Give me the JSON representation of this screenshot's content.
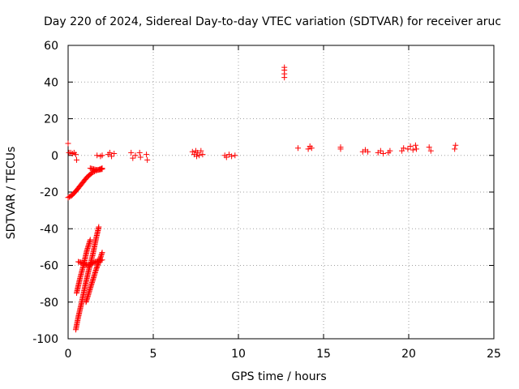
{
  "chart_data": {
    "type": "scatter",
    "title": "Day 220 of 2024, Sidereal Day-to-day VTEC variation (SDTVAR) for receiver aruc",
    "xlabel": "GPS time / hours",
    "ylabel": "SDTVAR / TECUs",
    "xlim": [
      0,
      25
    ],
    "ylim": [
      -100,
      60
    ],
    "xticks": [
      0,
      5,
      10,
      15,
      20,
      25
    ],
    "yticks": [
      -100,
      -80,
      -60,
      -40,
      -20,
      0,
      20,
      40,
      60
    ],
    "grid": true,
    "marker": "plus",
    "color": "#ff0000",
    "clusters": [
      {
        "x": 0.0,
        "y": 6.5
      },
      {
        "x": 0.05,
        "y": 1.5
      },
      {
        "x": 0.15,
        "y": 1.5
      },
      {
        "x": 0.25,
        "y": 1.0
      },
      {
        "x": 0.35,
        "y": 1.5
      },
      {
        "x": 0.45,
        "y": 0.5
      },
      {
        "x": 0.5,
        "y": -2.5
      },
      {
        "x": 1.7,
        "y": 0.0
      },
      {
        "x": 1.9,
        "y": -0.5
      },
      {
        "x": 2.0,
        "y": 0.0
      },
      {
        "x": 2.35,
        "y": 0.5
      },
      {
        "x": 2.45,
        "y": 1.5
      },
      {
        "x": 2.55,
        "y": -0.5
      },
      {
        "x": 2.7,
        "y": 1.0
      },
      {
        "x": 3.7,
        "y": 1.5
      },
      {
        "x": 3.8,
        "y": -1.5
      },
      {
        "x": 3.95,
        "y": 0.0
      },
      {
        "x": 4.2,
        "y": 1.5
      },
      {
        "x": 4.25,
        "y": -1.0
      },
      {
        "x": 4.6,
        "y": 0.5
      },
      {
        "x": 4.65,
        "y": -2.5
      },
      {
        "x": 7.3,
        "y": 2.0
      },
      {
        "x": 7.4,
        "y": 0.5
      },
      {
        "x": 7.5,
        "y": 2.5
      },
      {
        "x": 7.6,
        "y": 1.5
      },
      {
        "x": 7.7,
        "y": 0.0
      },
      {
        "x": 7.8,
        "y": 2.5
      },
      {
        "x": 7.9,
        "y": 0.5
      },
      {
        "x": 7.55,
        "y": -0.5
      },
      {
        "x": 9.2,
        "y": 0.0
      },
      {
        "x": 9.3,
        "y": -1.0
      },
      {
        "x": 9.45,
        "y": 0.5
      },
      {
        "x": 9.6,
        "y": -0.5
      },
      {
        "x": 9.8,
        "y": 0.0
      },
      {
        "x": 12.7,
        "y": 42.5
      },
      {
        "x": 12.7,
        "y": 44.5
      },
      {
        "x": 12.7,
        "y": 46.5
      },
      {
        "x": 12.7,
        "y": 48.0
      },
      {
        "x": 13.5,
        "y": 4.0
      },
      {
        "x": 14.1,
        "y": 3.5
      },
      {
        "x": 14.2,
        "y": 5.0
      },
      {
        "x": 14.3,
        "y": 4.0
      },
      {
        "x": 16.0,
        "y": 4.5
      },
      {
        "x": 16.0,
        "y": 3.5
      },
      {
        "x": 17.3,
        "y": 2.0
      },
      {
        "x": 17.45,
        "y": 3.0
      },
      {
        "x": 17.6,
        "y": 2.0
      },
      {
        "x": 18.2,
        "y": 1.5
      },
      {
        "x": 18.35,
        "y": 2.5
      },
      {
        "x": 18.5,
        "y": 1.0
      },
      {
        "x": 18.8,
        "y": 1.5
      },
      {
        "x": 18.9,
        "y": 2.5
      },
      {
        "x": 19.6,
        "y": 2.5
      },
      {
        "x": 19.7,
        "y": 4.0
      },
      {
        "x": 19.95,
        "y": 3.5
      },
      {
        "x": 20.1,
        "y": 5.0
      },
      {
        "x": 20.25,
        "y": 3.0
      },
      {
        "x": 20.4,
        "y": 5.5
      },
      {
        "x": 20.45,
        "y": 3.5
      },
      {
        "x": 21.2,
        "y": 4.5
      },
      {
        "x": 21.3,
        "y": 2.5
      },
      {
        "x": 22.7,
        "y": 3.5
      },
      {
        "x": 22.75,
        "y": 5.5
      }
    ],
    "tracks": [
      {
        "x": [
          0.0,
          0.2,
          0.5,
          0.8,
          1.1,
          1.4,
          1.7,
          2.0
        ],
        "y": [
          -23.0,
          -22.0,
          -19.0,
          -15.5,
          -12.0,
          -9.5,
          -8.0,
          -7.5
        ]
      },
      {
        "x": [
          1.3,
          1.5,
          1.7,
          1.9,
          2.0
        ],
        "y": [
          -7.0,
          -7.5,
          -8.0,
          -7.5,
          -7.0
        ]
      },
      {
        "x": [
          0.45,
          0.6,
          0.8,
          1.0,
          1.2,
          1.45,
          1.65,
          1.8
        ],
        "y": [
          -95.0,
          -88.0,
          -80.0,
          -71.0,
          -63.0,
          -54.0,
          -45.0,
          -39.0
        ]
      },
      {
        "x": [
          0.5,
          0.7,
          0.9,
          1.1,
          1.3
        ],
        "y": [
          -75.0,
          -67.0,
          -60.0,
          -52.0,
          -46.0
        ]
      },
      {
        "x": [
          1.05,
          1.25,
          1.45,
          1.65,
          1.85,
          2.0
        ],
        "y": [
          -80.0,
          -74.0,
          -68.0,
          -62.0,
          -57.0,
          -53.0
        ]
      },
      {
        "x": [
          0.6,
          0.8,
          1.0,
          1.2,
          1.4,
          1.6,
          1.8,
          2.0
        ],
        "y": [
          -58.0,
          -58.5,
          -59.5,
          -60.0,
          -59.0,
          -58.0,
          -57.5,
          -57.0
        ]
      }
    ]
  }
}
